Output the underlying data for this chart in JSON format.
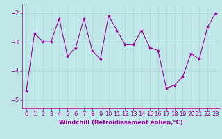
{
  "xlabel": "Windchill (Refroidissement éolien,°C)",
  "x": [
    0,
    1,
    2,
    3,
    4,
    5,
    6,
    7,
    8,
    9,
    10,
    11,
    12,
    13,
    14,
    15,
    16,
    17,
    18,
    19,
    20,
    21,
    22,
    23
  ],
  "y": [
    -4.7,
    -2.7,
    -3.0,
    -3.0,
    -2.2,
    -3.5,
    -3.2,
    -2.2,
    -3.3,
    -3.6,
    -2.1,
    -2.6,
    -3.1,
    -3.1,
    -2.6,
    -3.2,
    -3.3,
    -4.6,
    -4.5,
    -4.2,
    -3.4,
    -3.6,
    -2.5,
    -2.0
  ],
  "line_color": "#9b009b",
  "marker": "*",
  "marker_size": 3,
  "xlim": [
    -0.5,
    23.5
  ],
  "ylim": [
    -5.3,
    -1.7
  ],
  "yticks": [
    -5,
    -4,
    -3,
    -2
  ],
  "xticks": [
    0,
    1,
    2,
    3,
    4,
    5,
    6,
    7,
    8,
    9,
    10,
    11,
    12,
    13,
    14,
    15,
    16,
    17,
    18,
    19,
    20,
    21,
    22,
    23
  ],
  "grid_color": "#a8d8d8",
  "bg_color": "#c0e8e8",
  "tick_color": "#9b009b",
  "label_color": "#9b009b",
  "font_size_xlabel": 6,
  "font_size_ticks": 6
}
